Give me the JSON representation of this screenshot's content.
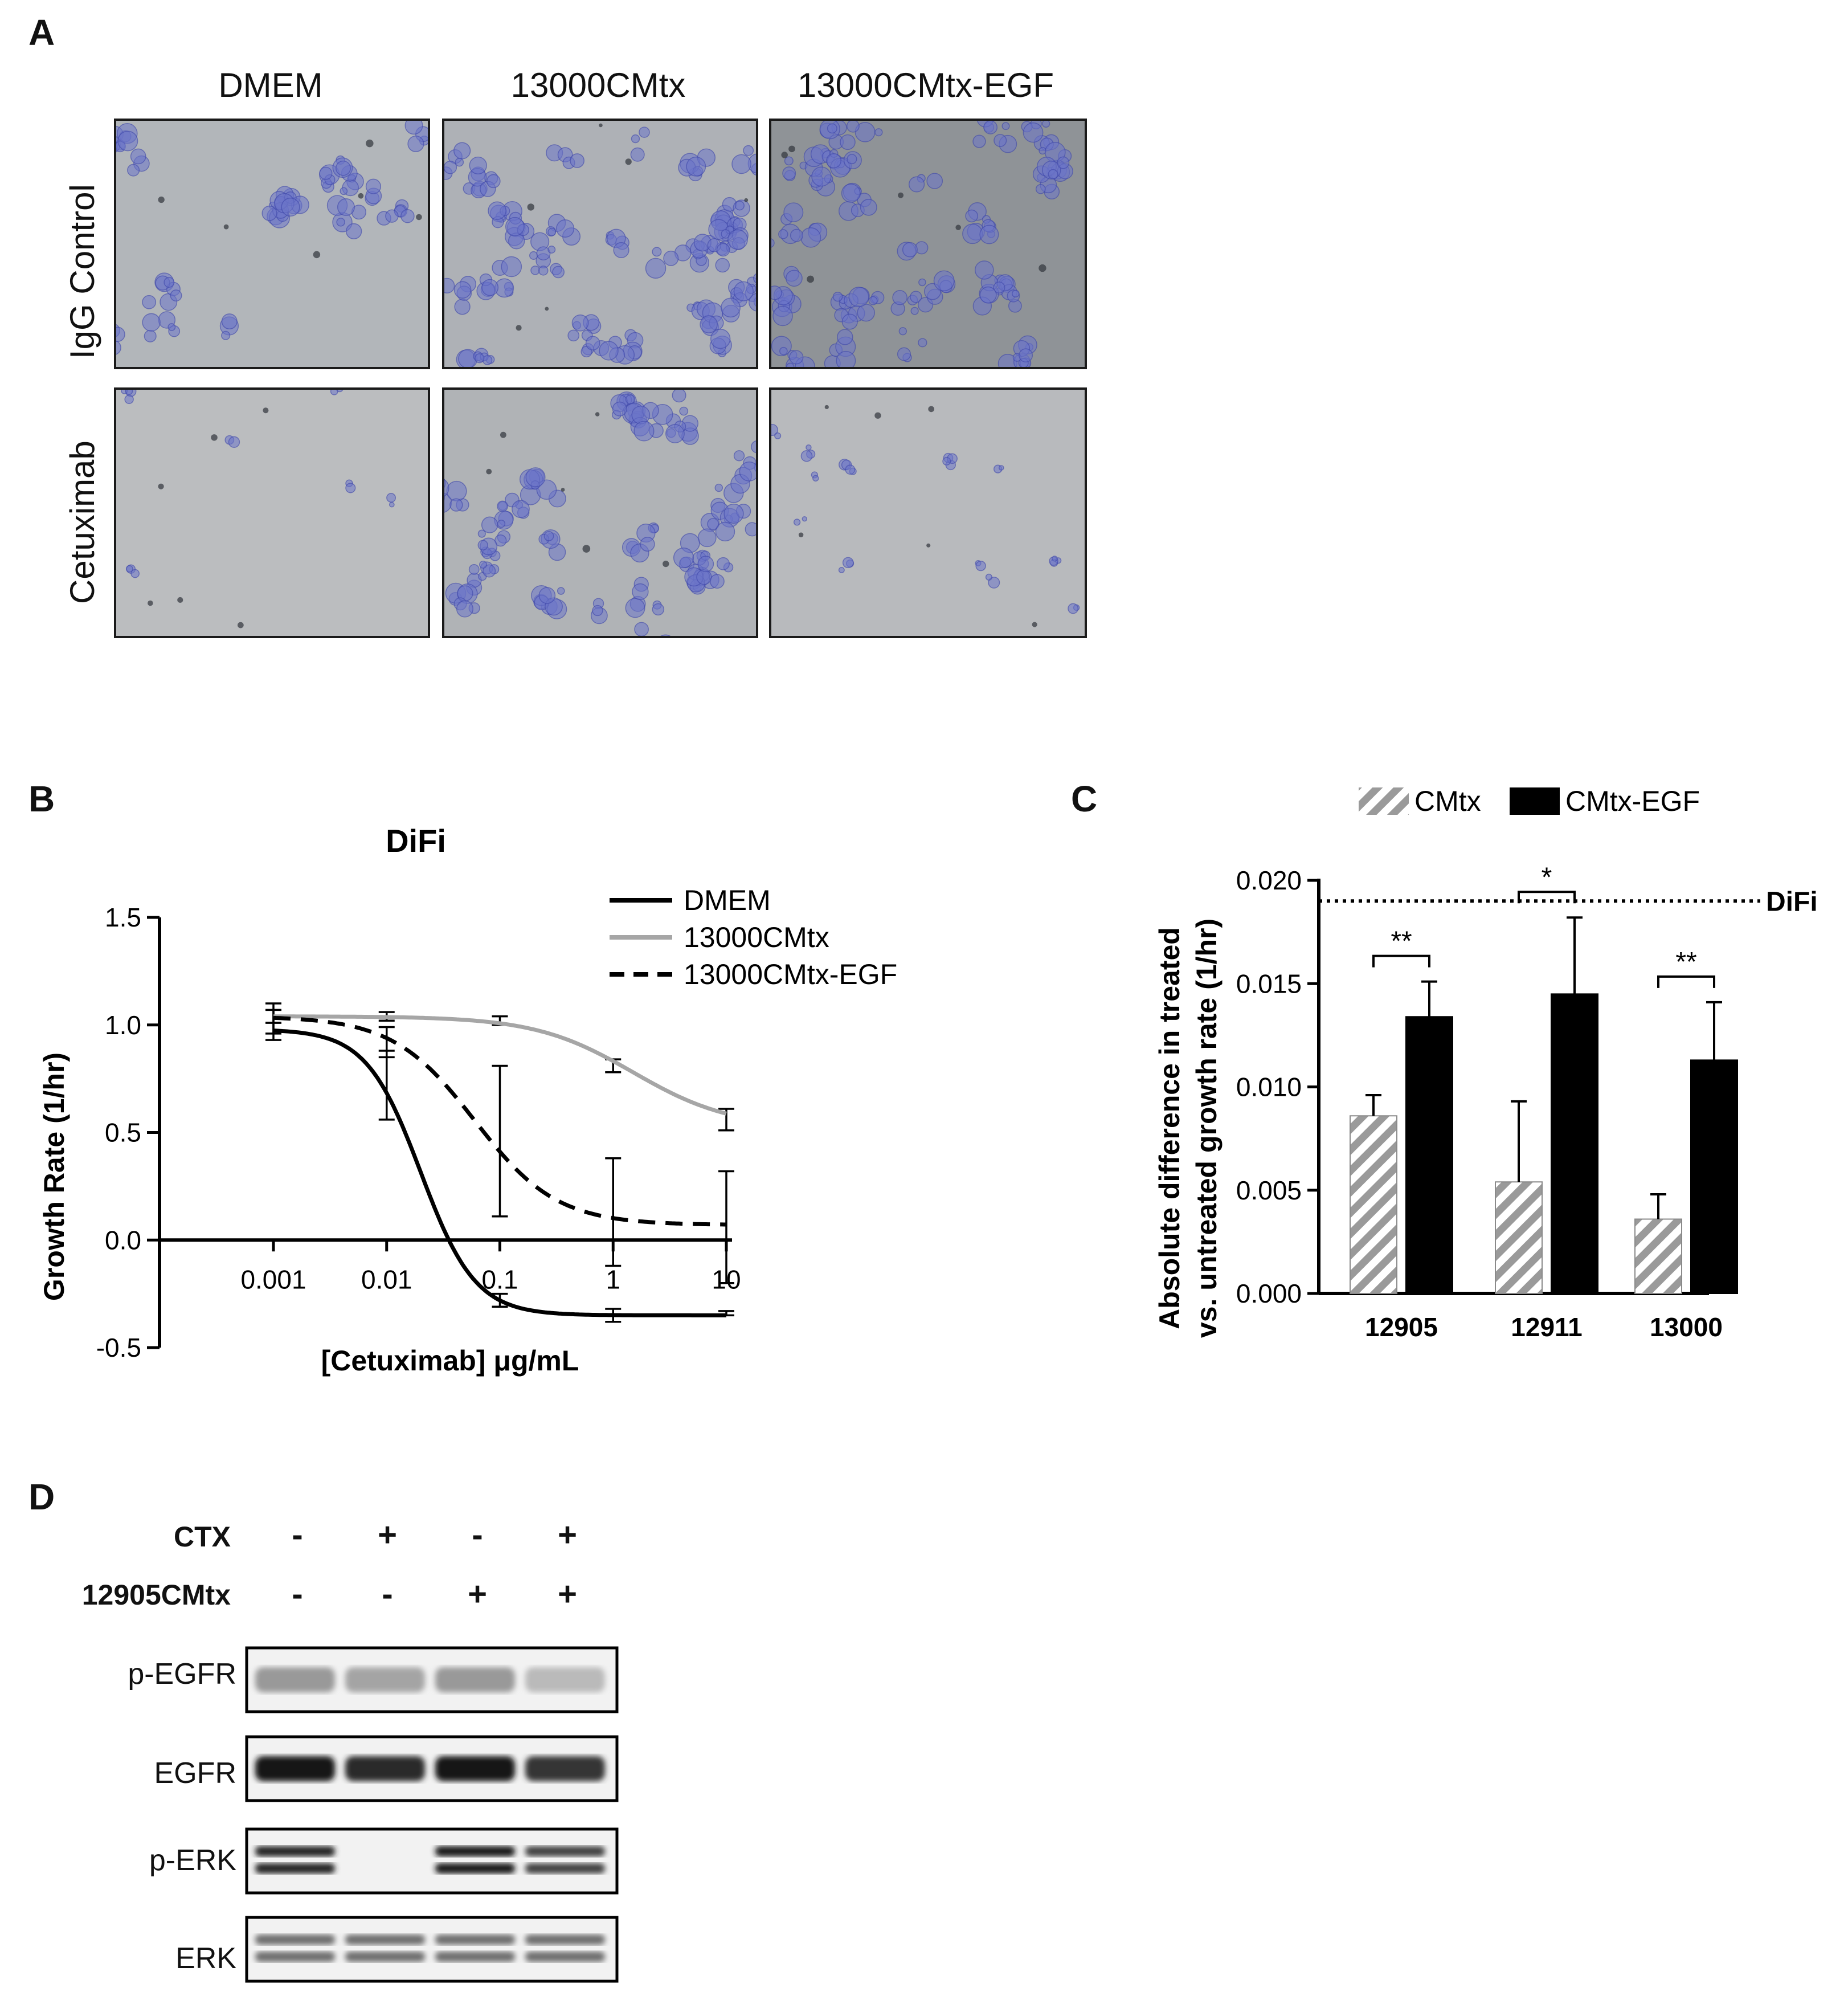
{
  "panel_a": {
    "letter": "A",
    "columns": [
      "DMEM",
      "13000CMtx",
      "13000CMtx-EGF"
    ],
    "rows": [
      "IgG Control",
      "Cetuximab"
    ]
  },
  "panel_b": {
    "letter": "B",
    "chart_data": {
      "type": "line",
      "title": "DiFi",
      "xlabel": "[Cetuximab]  μg/mL",
      "ylabel": "Growth Rate (1/hr)",
      "x_scale": "log",
      "x_ticks": [
        "0.001",
        "0.01",
        "0.1",
        "1",
        "10"
      ],
      "y_ticks": [
        "-0.5",
        "0.0",
        "0.5",
        "1.0",
        "1.5"
      ],
      "ylim": [
        -0.5,
        1.5
      ],
      "xlim": [
        0.001,
        10
      ],
      "legend_position": "top-right",
      "series": [
        {
          "name": "DMEM",
          "style": "solid",
          "color": "#000000",
          "x": [
            0.001,
            0.01,
            0.1,
            1,
            10
          ],
          "y": [
            0.97,
            0.72,
            -0.28,
            -0.35,
            -0.34
          ],
          "err": [
            0.04,
            0.16,
            0.03,
            0.03,
            0.01
          ]
        },
        {
          "name": "13000CMtx",
          "style": "solid",
          "color": "#a6a6a6",
          "x": [
            0.001,
            0.01,
            0.1,
            1,
            10
          ],
          "y": [
            1.04,
            1.04,
            1.02,
            0.81,
            0.56
          ],
          "err": [
            0.03,
            0.02,
            0.02,
            0.03,
            0.05
          ]
        },
        {
          "name": "13000CMtx-EGF",
          "style": "dashed",
          "color": "#000000",
          "x": [
            0.001,
            0.01,
            0.1,
            1,
            10
          ],
          "y": [
            1.03,
            0.92,
            0.46,
            0.13,
            0.06
          ],
          "err": [
            0.07,
            0.07,
            0.35,
            0.25,
            0.26
          ]
        }
      ]
    }
  },
  "panel_c": {
    "letter": "C",
    "chart_data": {
      "type": "bar",
      "ylabel_line1": "Absolute difference in treated",
      "ylabel_line2": "vs. untreated growth rate (1/hr)",
      "categories": [
        "12905",
        "12911",
        "13000"
      ],
      "y_ticks": [
        "0.000",
        "0.005",
        "0.010",
        "0.015",
        "0.020"
      ],
      "ylim": [
        0,
        0.02
      ],
      "legend_position": "top",
      "reference_line": {
        "label": "DiFi",
        "value": 0.019,
        "style": "dotted"
      },
      "series": [
        {
          "name": "CMtx",
          "pattern": "hatched-gray",
          "values": [
            0.0086,
            0.0054,
            0.0036
          ],
          "err": [
            0.001,
            0.0039,
            0.0012
          ]
        },
        {
          "name": "CMtx-EGF",
          "pattern": "solid-black",
          "values": [
            0.0134,
            0.0145,
            0.0113
          ],
          "err": [
            0.0017,
            0.0037,
            0.0028
          ]
        }
      ],
      "significance": [
        "**",
        "*",
        "**"
      ]
    }
  },
  "panel_d": {
    "letter": "D",
    "treatments": [
      {
        "label": "CTX",
        "signs": [
          "-",
          "+",
          "-",
          "+"
        ]
      },
      {
        "label": "12905CMtx",
        "signs": [
          "-",
          "-",
          "+",
          "+"
        ]
      }
    ],
    "blots": [
      {
        "label": "p-EGFR",
        "intensity": [
          0.35,
          0.3,
          0.35,
          0.2
        ],
        "bands": 1
      },
      {
        "label": "EGFR",
        "intensity": [
          0.95,
          0.85,
          0.95,
          0.8
        ],
        "bands": 1
      },
      {
        "label": "p-ERK",
        "intensity": [
          0.9,
          0.0,
          0.95,
          0.75
        ],
        "bands": 2
      },
      {
        "label": "ERK",
        "intensity": [
          0.55,
          0.55,
          0.55,
          0.55
        ],
        "bands": 2
      }
    ]
  }
}
